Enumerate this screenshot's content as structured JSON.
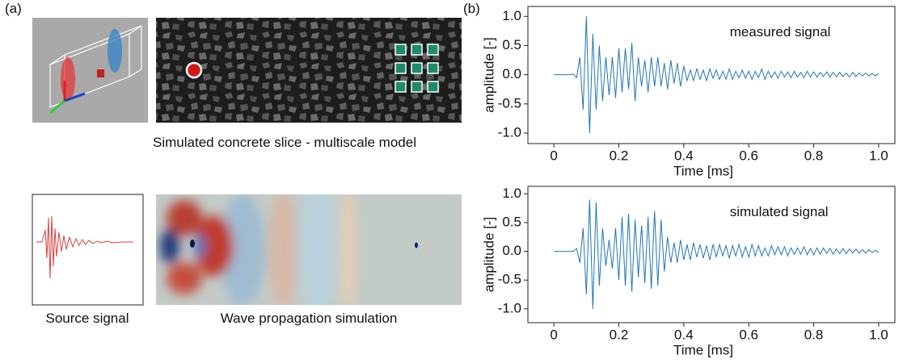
{
  "panel_a": {
    "label": "(a)",
    "slice_caption": "Simulated concrete slice - multiscale model",
    "source_caption": "Source signal",
    "wave_caption": "Wave propagation simulation"
  },
  "panel_b": {
    "label": "(b)"
  },
  "chart_data": [
    {
      "type": "line",
      "annotation": "measured signal",
      "xlabel": "Time [ms]",
      "ylabel": "amplitude [-]",
      "color": "#1f77b4",
      "x": [
        0,
        0.01,
        0.02,
        0.03,
        0.04,
        0.05,
        0.06,
        0.07,
        0.08,
        0.09,
        0.1,
        0.11,
        0.12,
        0.13,
        0.14,
        0.15,
        0.16,
        0.17,
        0.18,
        0.19,
        0.2,
        0.21,
        0.22,
        0.23,
        0.24,
        0.25,
        0.26,
        0.27,
        0.28,
        0.29,
        0.3,
        0.31,
        0.32,
        0.33,
        0.34,
        0.35,
        0.36,
        0.37,
        0.38,
        0.39,
        0.4,
        0.41,
        0.42,
        0.43,
        0.44,
        0.45,
        0.46,
        0.47,
        0.48,
        0.49,
        0.5,
        0.51,
        0.52,
        0.53,
        0.54,
        0.55,
        0.56,
        0.57,
        0.58,
        0.59,
        0.6,
        0.61,
        0.62,
        0.63,
        0.64,
        0.65,
        0.66,
        0.67,
        0.68,
        0.69,
        0.7,
        0.71,
        0.72,
        0.73,
        0.74,
        0.75,
        0.76,
        0.77,
        0.78,
        0.79,
        0.8,
        0.81,
        0.82,
        0.83,
        0.84,
        0.85,
        0.86,
        0.87,
        0.88,
        0.89,
        0.9,
        0.91,
        0.92,
        0.93,
        0.94,
        0.95,
        0.96,
        0.97,
        0.98,
        0.99,
        1
      ],
      "values": [
        0,
        0,
        0,
        0,
        0,
        0,
        0.01,
        -0.05,
        0.3,
        -0.6,
        1.0,
        -1.0,
        0.7,
        -0.6,
        0.5,
        -0.45,
        0.3,
        -0.35,
        0.3,
        -0.4,
        0.45,
        -0.3,
        0.45,
        -0.25,
        0.55,
        -0.45,
        0.3,
        -0.2,
        0.25,
        -0.3,
        0.3,
        -0.2,
        0.3,
        -0.2,
        0.2,
        -0.25,
        0.25,
        -0.15,
        0.2,
        -0.2,
        0.15,
        -0.1,
        0.08,
        -0.1,
        0.1,
        -0.08,
        0.08,
        -0.1,
        0.1,
        -0.06,
        0.08,
        -0.08,
        0.06,
        -0.08,
        0.1,
        -0.08,
        0.06,
        -0.05,
        0.08,
        -0.06,
        0.06,
        -0.08,
        0.06,
        -0.05,
        0.1,
        -0.08,
        0.06,
        -0.05,
        0.05,
        -0.06,
        0.06,
        -0.04,
        0.05,
        -0.05,
        0.06,
        -0.04,
        0.04,
        -0.05,
        0.06,
        -0.04,
        0.05,
        -0.04,
        0.04,
        -0.03,
        0.05,
        -0.04,
        0.04,
        -0.03,
        0.04,
        -0.03,
        0.03,
        -0.04,
        0.04,
        -0.03,
        0.03,
        -0.02,
        0.03,
        -0.02,
        0.02,
        -0.02,
        0.02
      ],
      "xlim": [
        -0.08,
        1.05
      ],
      "ylim": [
        -1.18,
        1.17
      ],
      "xticks": [
        0,
        0.2,
        0.4,
        0.6,
        0.8,
        {
          "value": 1,
          "label": "1.0"
        }
      ],
      "yticks": [
        {
          "value": -1,
          "label": "-1.0"
        },
        -0.5,
        {
          "value": 0,
          "label": "0.0"
        },
        0.5,
        {
          "value": 1,
          "label": "1.0"
        }
      ]
    },
    {
      "type": "line",
      "annotation": "simulated signal",
      "xlabel": "Time [ms]",
      "ylabel": "amplitude [-]",
      "color": "#1f77b4",
      "x": [
        0,
        0.01,
        0.02,
        0.03,
        0.04,
        0.05,
        0.06,
        0.07,
        0.08,
        0.09,
        0.1,
        0.11,
        0.12,
        0.13,
        0.14,
        0.15,
        0.16,
        0.17,
        0.18,
        0.19,
        0.2,
        0.21,
        0.22,
        0.23,
        0.24,
        0.25,
        0.26,
        0.27,
        0.28,
        0.29,
        0.3,
        0.31,
        0.32,
        0.33,
        0.34,
        0.35,
        0.36,
        0.37,
        0.38,
        0.39,
        0.4,
        0.41,
        0.42,
        0.43,
        0.44,
        0.45,
        0.46,
        0.47,
        0.48,
        0.49,
        0.5,
        0.51,
        0.52,
        0.53,
        0.54,
        0.55,
        0.56,
        0.57,
        0.58,
        0.59,
        0.6,
        0.61,
        0.62,
        0.63,
        0.64,
        0.65,
        0.66,
        0.67,
        0.68,
        0.69,
        0.7,
        0.71,
        0.72,
        0.73,
        0.74,
        0.75,
        0.76,
        0.77,
        0.78,
        0.79,
        0.8,
        0.81,
        0.82,
        0.83,
        0.84,
        0.85,
        0.86,
        0.87,
        0.88,
        0.89,
        0.9,
        0.91,
        0.92,
        0.93,
        0.94,
        0.95,
        0.96,
        0.97,
        0.98,
        0.99,
        1
      ],
      "values": [
        0,
        0,
        0,
        0,
        0,
        0,
        0,
        0.05,
        -0.2,
        0.4,
        -0.75,
        0.9,
        -1.0,
        0.85,
        -0.6,
        0.4,
        -0.25,
        0.2,
        -0.3,
        0.4,
        -0.5,
        0.6,
        -0.6,
        0.65,
        -0.7,
        0.55,
        -0.45,
        0.45,
        -0.55,
        0.6,
        -0.65,
        0.7,
        -0.6,
        0.55,
        -0.35,
        0.25,
        -0.2,
        0.15,
        -0.2,
        0.2,
        -0.15,
        0.12,
        -0.15,
        0.15,
        -0.1,
        0.12,
        -0.12,
        0.1,
        -0.15,
        0.12,
        -0.1,
        0.12,
        -0.08,
        0.1,
        -0.12,
        0.1,
        -0.08,
        0.12,
        -0.1,
        0.08,
        -0.1,
        0.12,
        -0.08,
        0.1,
        -0.08,
        0.06,
        -0.08,
        0.1,
        -0.06,
        0.08,
        -0.06,
        0.08,
        -0.08,
        0.06,
        -0.05,
        0.06,
        -0.05,
        0.08,
        -0.06,
        0.05,
        -0.06,
        0.06,
        -0.05,
        0.06,
        -0.04,
        0.05,
        -0.05,
        0.04,
        -0.04,
        0.05,
        -0.04,
        0.04,
        -0.03,
        0.04,
        -0.03,
        0.03,
        -0.03,
        0.03,
        -0.02,
        0.02,
        -0.02
      ],
      "xlim": [
        -0.08,
        1.05
      ],
      "ylim": [
        -1.24,
        1.13
      ],
      "xticks": [
        0,
        0.2,
        0.4,
        0.6,
        0.8,
        {
          "value": 1,
          "label": "1.0"
        }
      ],
      "yticks": [
        {
          "value": -1,
          "label": "-1.0"
        },
        -0.5,
        {
          "value": 0,
          "label": "0.0"
        },
        0.5,
        {
          "value": 1,
          "label": "1.0"
        }
      ]
    }
  ]
}
